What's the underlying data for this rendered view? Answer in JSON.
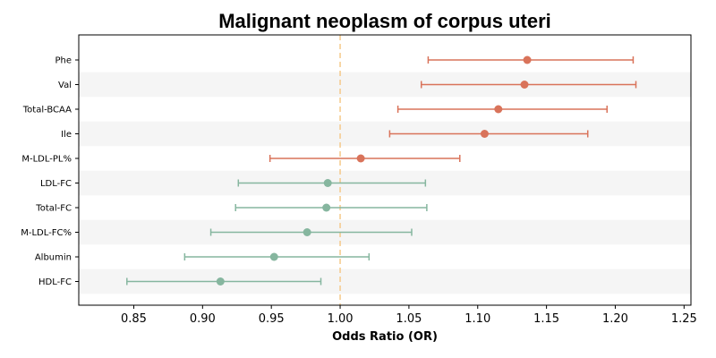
{
  "chart_data": {
    "type": "forest",
    "title": "Malignant neoplasm of corpus uteri",
    "xlabel": "Odds Ratio (OR)",
    "ylabel": "",
    "xlim": [
      0.81,
      1.255
    ],
    "xticks": [
      0.85,
      0.9,
      0.95,
      1.0,
      1.05,
      1.1,
      1.15,
      1.2,
      1.25
    ],
    "xtick_labels": [
      "0.85",
      "0.90",
      "0.95",
      "1.00",
      "1.05",
      "1.10",
      "1.15",
      "1.20",
      "1.25"
    ],
    "reference_line": 1.0,
    "grid": false,
    "colors": {
      "increase": "#d9735a",
      "decrease": "#86b69f",
      "reference": "#f5c98a",
      "band": "#f5f5f5"
    },
    "series": [
      {
        "label": "Phe",
        "or": 1.136,
        "lower": 1.064,
        "upper": 1.213,
        "direction": "increase"
      },
      {
        "label": "Val",
        "or": 1.134,
        "lower": 1.059,
        "upper": 1.215,
        "direction": "increase"
      },
      {
        "label": "Total-BCAA",
        "or": 1.115,
        "lower": 1.042,
        "upper": 1.194,
        "direction": "increase"
      },
      {
        "label": "Ile",
        "or": 1.105,
        "lower": 1.036,
        "upper": 1.18,
        "direction": "increase"
      },
      {
        "label": "M-LDL-PL%",
        "or": 1.015,
        "lower": 0.949,
        "upper": 1.087,
        "direction": "increase"
      },
      {
        "label": "LDL-FC",
        "or": 0.991,
        "lower": 0.926,
        "upper": 1.062,
        "direction": "decrease"
      },
      {
        "label": "Total-FC",
        "or": 0.99,
        "lower": 0.924,
        "upper": 1.063,
        "direction": "decrease"
      },
      {
        "label": "M-LDL-FC%",
        "or": 0.976,
        "lower": 0.906,
        "upper": 1.052,
        "direction": "decrease"
      },
      {
        "label": "Albumin",
        "or": 0.952,
        "lower": 0.887,
        "upper": 1.021,
        "direction": "decrease"
      },
      {
        "label": "HDL-FC",
        "or": 0.913,
        "lower": 0.845,
        "upper": 0.986,
        "direction": "decrease"
      }
    ]
  }
}
